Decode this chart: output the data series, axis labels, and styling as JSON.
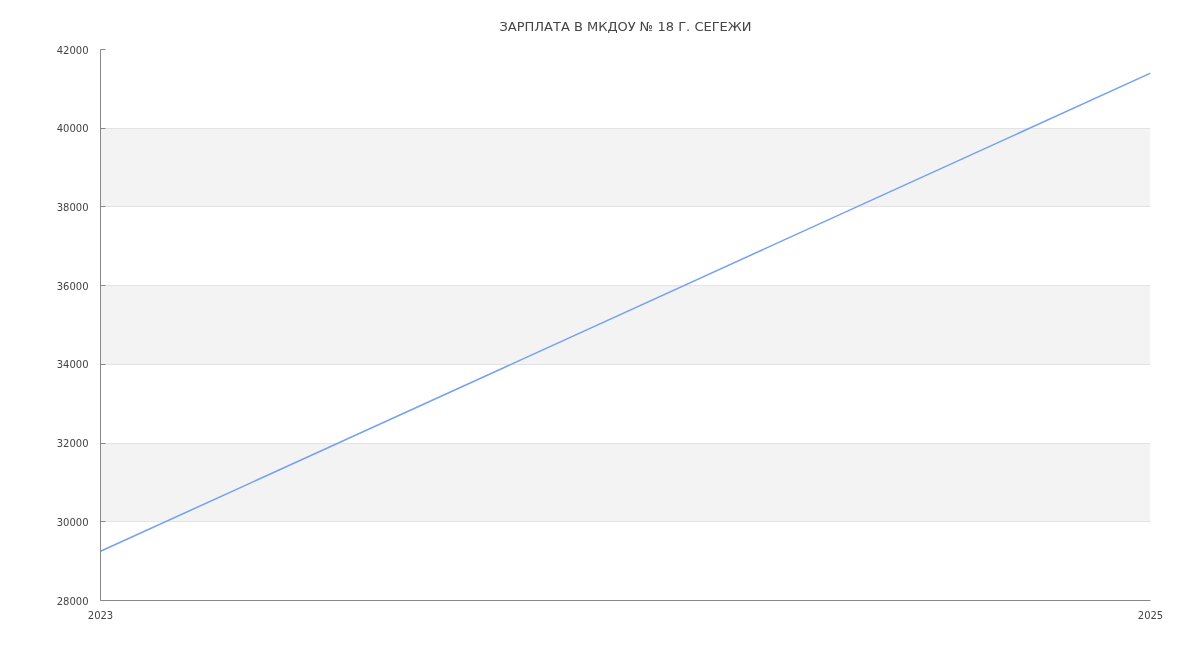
{
  "chart_data": {
    "type": "line",
    "title": "ЗАРПЛАТА В МКДОУ № 18 Г. СЕГЕЖИ",
    "x": [
      2023,
      2025
    ],
    "series": [
      {
        "color": "#72a0f2",
        "values": [
          29250,
          41400
        ]
      }
    ],
    "xlim": [
      2023,
      2025
    ],
    "xticks": [
      2023,
      2025
    ],
    "ylim": [
      28000,
      42000
    ],
    "yticks": [
      28000,
      30000,
      32000,
      34000,
      36000,
      38000,
      40000,
      42000
    ],
    "grid": true,
    "line_style": "solid"
  }
}
